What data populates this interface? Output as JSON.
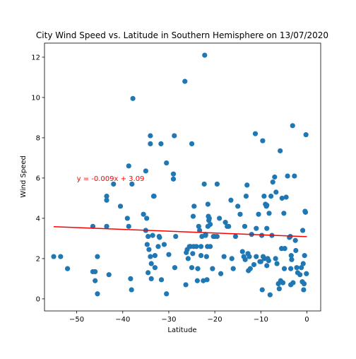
{
  "chart_data": {
    "type": "scatter",
    "title": "City Wind Speed vs. Latitude in Southern Hemisphere on 13/07/2020",
    "xlabel": "Latitude",
    "ylabel": "Wind Speed",
    "xlim": [
      -57,
      3
    ],
    "ylim": [
      -0.6,
      12.7
    ],
    "xticks": [
      -50,
      -40,
      -30,
      -20,
      -10,
      0
    ],
    "yticks": [
      0,
      2,
      4,
      6,
      8,
      10,
      12
    ],
    "grid": false,
    "point_color": "#1f77b4",
    "line_color": "#ff0000",
    "regression": {
      "slope": -0.009,
      "intercept": 3.09,
      "x_range": [
        -55,
        0
      ],
      "equation_label": "y = -0.009x + 3.09",
      "label_at": [
        -50,
        6
      ]
    },
    "points": [
      [
        -55,
        2.1
      ],
      [
        -53.5,
        2.1
      ],
      [
        -52,
        1.5
      ],
      [
        -46.5,
        3.6
      ],
      [
        -46.5,
        1.35
      ],
      [
        -46,
        1.35
      ],
      [
        -46,
        0.9
      ],
      [
        -45.5,
        2.1
      ],
      [
        -45.5,
        0.25
      ],
      [
        -43.5,
        5.1
      ],
      [
        -43.5,
        4.9
      ],
      [
        -43.5,
        3.6
      ],
      [
        -43,
        1.2
      ],
      [
        -42,
        5.7
      ],
      [
        -40.5,
        4.6
      ],
      [
        -39,
        4.0
      ],
      [
        -38.7,
        6.6
      ],
      [
        -38.7,
        3.6
      ],
      [
        -38.3,
        1.0
      ],
      [
        -38.1,
        0.45
      ],
      [
        -38,
        5.7
      ],
      [
        -37.8,
        9.95
      ],
      [
        -35.5,
        4.2
      ],
      [
        -35,
        3.4
      ],
      [
        -35,
        6.35
      ],
      [
        -34.8,
        4.0
      ],
      [
        -34.7,
        2.7
      ],
      [
        -34.5,
        3.1
      ],
      [
        -34.5,
        1.3
      ],
      [
        -34.3,
        2.45
      ],
      [
        -34,
        8.1
      ],
      [
        -34,
        7.7
      ],
      [
        -34,
        2.1
      ],
      [
        -33.8,
        1.0
      ],
      [
        -33.8,
        1.75
      ],
      [
        -33.5,
        3.15
      ],
      [
        -33.3,
        5.1
      ],
      [
        -33.2,
        5.1
      ],
      [
        -33,
        2.15
      ],
      [
        -33,
        1.55
      ],
      [
        -32.3,
        2.6
      ],
      [
        -32.1,
        3.1
      ],
      [
        -32,
        3.05
      ],
      [
        -31.7,
        7.7
      ],
      [
        -31.6,
        0.95
      ],
      [
        -31,
        2.7
      ],
      [
        -30.5,
        6.75
      ],
      [
        -30.5,
        0.25
      ],
      [
        -30,
        2.2
      ],
      [
        -29,
        6.2
      ],
      [
        -29,
        5.95
      ],
      [
        -28.8,
        8.1
      ],
      [
        -28.7,
        1.55
      ],
      [
        -28.5,
        3.1
      ],
      [
        -26.5,
        10.8
      ],
      [
        -26.3,
        0.7
      ],
      [
        -26.2,
        2.3
      ],
      [
        -26,
        2.45
      ],
      [
        -25.8,
        2.0
      ],
      [
        -25.5,
        2.6
      ],
      [
        -25.3,
        2.6
      ],
      [
        -25,
        7.7
      ],
      [
        -25,
        1.55
      ],
      [
        -24.8,
        2.25
      ],
      [
        -24.7,
        4.1
      ],
      [
        -24.6,
        2.6
      ],
      [
        -24.5,
        4.6
      ],
      [
        -24,
        2.6
      ],
      [
        -23.8,
        0.9
      ],
      [
        -23.7,
        1.5
      ],
      [
        -23.5,
        3.6
      ],
      [
        -23.3,
        3.4
      ],
      [
        -23,
        2.6
      ],
      [
        -23,
        2.15
      ],
      [
        -22.8,
        3.1
      ],
      [
        -22.5,
        0.9
      ],
      [
        -22.3,
        5.7
      ],
      [
        -22.2,
        12.1
      ],
      [
        -22,
        3.2
      ],
      [
        -22,
        3.15
      ],
      [
        -21.8,
        2.1
      ],
      [
        -21.7,
        0.95
      ],
      [
        -21.6,
        2.6
      ],
      [
        -21.5,
        3.6
      ],
      [
        -21.5,
        4.7
      ],
      [
        -21.4,
        4.1
      ],
      [
        -21.3,
        3.9
      ],
      [
        -21.2,
        4.0
      ],
      [
        -21,
        2.6
      ],
      [
        -21,
        3.7
      ],
      [
        -20.5,
        1.5
      ],
      [
        -20.3,
        3.1
      ],
      [
        -20,
        3.1
      ],
      [
        -19.5,
        3.1
      ],
      [
        -19.5,
        5.7
      ],
      [
        -19,
        4.0
      ],
      [
        -18.7,
        1.25
      ],
      [
        -18,
        2.1
      ],
      [
        -17.7,
        3.8
      ],
      [
        -17.3,
        3.6
      ],
      [
        -17,
        3.6
      ],
      [
        -16.5,
        4.9
      ],
      [
        -16.3,
        2.0
      ],
      [
        -16,
        1.5
      ],
      [
        -15.5,
        3.1
      ],
      [
        -15,
        4.6
      ],
      [
        -14.5,
        4.2
      ],
      [
        -14,
        2.35
      ],
      [
        -13.7,
        2.1
      ],
      [
        -13.5,
        3.6
      ],
      [
        -13.4,
        1.95
      ],
      [
        -13.2,
        5.1
      ],
      [
        -13,
        5.65
      ],
      [
        -12.8,
        2.25
      ],
      [
        -12.7,
        1.4
      ],
      [
        -12.5,
        2.1
      ],
      [
        -12.3,
        1.5
      ],
      [
        -12,
        3.2
      ],
      [
        -11.5,
        1.7
      ],
      [
        -11.2,
        8.2
      ],
      [
        -11,
        3.5
      ],
      [
        -11,
        2.1
      ],
      [
        -10.5,
        4.2
      ],
      [
        -10.2,
        1.85
      ],
      [
        -10,
        1.85
      ],
      [
        -9.8,
        3.15
      ],
      [
        -9.7,
        0.45
      ],
      [
        -9.6,
        7.85
      ],
      [
        -9.5,
        2.1
      ],
      [
        -9.3,
        5.1
      ],
      [
        -9.2,
        2.0
      ],
      [
        -9,
        4.7
      ],
      [
        -8.8,
        4.6
      ],
      [
        -8.7,
        4.65
      ],
      [
        -8.7,
        3.5
      ],
      [
        -8.7,
        1.65
      ],
      [
        -8.5,
        2.0
      ],
      [
        -8.3,
        1.9
      ],
      [
        -8.2,
        4.25
      ],
      [
        -8,
        0.2
      ],
      [
        -7.8,
        5.1
      ],
      [
        -7.6,
        3.15
      ],
      [
        -7.4,
        5.8
      ],
      [
        -7,
        6.05
      ],
      [
        -6.8,
        2.0
      ],
      [
        -6.7,
        5.3
      ],
      [
        -6.5,
        1.75
      ],
      [
        -6.2,
        0.75
      ],
      [
        -6,
        0.5
      ],
      [
        -5.8,
        7.35
      ],
      [
        -5.7,
        0.9
      ],
      [
        -5.5,
        2.5
      ],
      [
        -5.4,
        5.0
      ],
      [
        -5.2,
        0.8
      ],
      [
        -5,
        4.25
      ],
      [
        -4.9,
        1.5
      ],
      [
        -4.8,
        2.5
      ],
      [
        -4.5,
        5.05
      ],
      [
        -4.2,
        6.1
      ],
      [
        -3.8,
        3.05
      ],
      [
        -3.6,
        3.1
      ],
      [
        -3.5,
        1.5
      ],
      [
        -3.5,
        0.7
      ],
      [
        -3.4,
        2.15
      ],
      [
        -3.3,
        1.95
      ],
      [
        -3.1,
        8.6
      ],
      [
        -3,
        0.8
      ],
      [
        -2.7,
        6.1
      ],
      [
        -2.5,
        2.9
      ],
      [
        -2.4,
        2.4
      ],
      [
        -2.2,
        1.55
      ],
      [
        -2,
        1.3
      ],
      [
        -1.5,
        1.2
      ],
      [
        -1.2,
        1.55
      ],
      [
        -1,
        0.85
      ],
      [
        -0.9,
        3.4
      ],
      [
        -0.8,
        1.75
      ],
      [
        -0.7,
        0.45
      ],
      [
        -0.6,
        0.75
      ],
      [
        -0.5,
        2.15
      ],
      [
        -0.4,
        4.35
      ],
      [
        -0.3,
        4.3
      ],
      [
        -0.2,
        8.15
      ],
      [
        -0.1,
        1.25
      ]
    ]
  }
}
